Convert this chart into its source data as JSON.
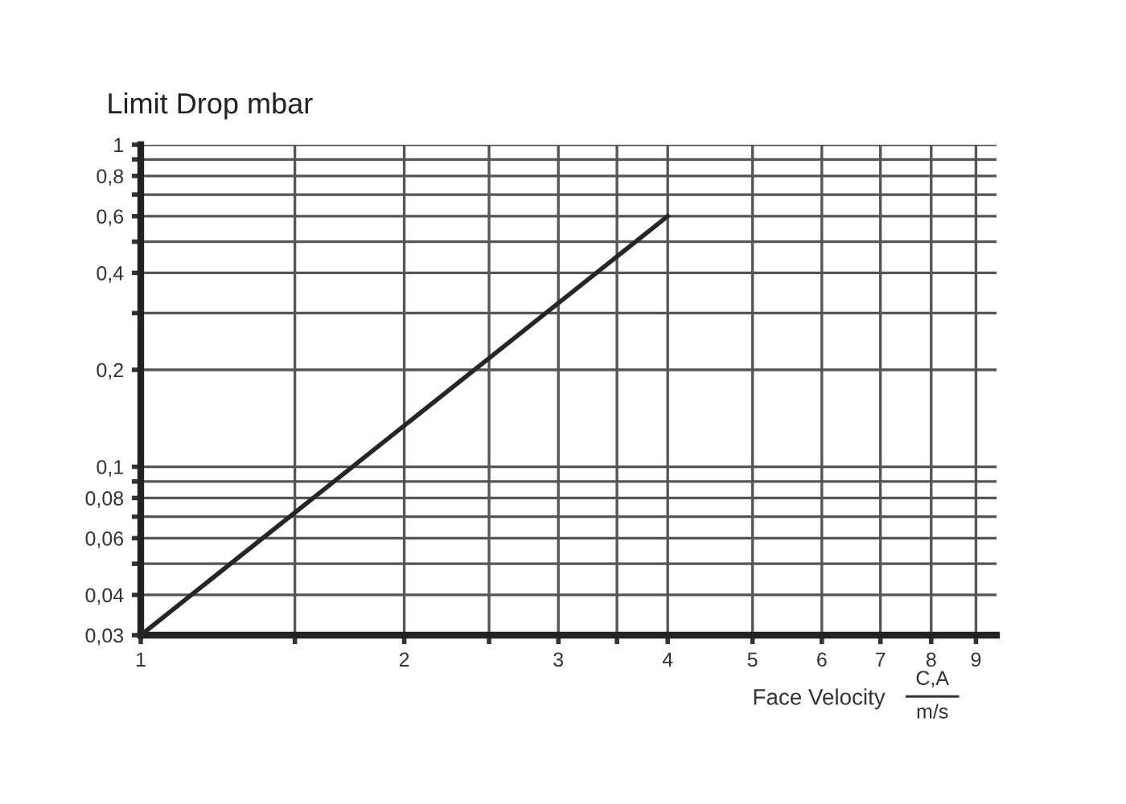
{
  "chart_data": {
    "type": "line",
    "title": "Limit Drop mbar",
    "xlabel": "Face Velocity",
    "annotations": [
      "C,A",
      "m/s"
    ],
    "x": [
      1,
      4
    ],
    "series": [
      {
        "color": "#262626",
        "values": [
          0.03,
          0.6
        ]
      }
    ],
    "log": "xy",
    "xlim": [
      1,
      9.5
    ],
    "ylim": [
      0.03,
      1
    ],
    "xticks": [
      1,
      {
        "value": 1.5,
        "label": null
      },
      2,
      {
        "value": 2.5,
        "label": null
      },
      3,
      {
        "value": 3.5,
        "label": null
      },
      4,
      5,
      6,
      7,
      8,
      9
    ],
    "yticks": [
      {
        "value": 0.03,
        "label": "0,03"
      },
      {
        "value": 0.04,
        "label": "0,04"
      },
      {
        "value": 0.05,
        "label": null
      },
      {
        "value": 0.06,
        "label": "0,06"
      },
      {
        "value": 0.07,
        "label": null
      },
      {
        "value": 0.08,
        "label": "0,08"
      },
      {
        "value": 0.09,
        "label": null
      },
      {
        "value": 0.1,
        "label": "0,1"
      },
      {
        "value": 0.2,
        "label": "0,2"
      },
      {
        "value": 0.3,
        "label": null
      },
      {
        "value": 0.4,
        "label": "0,4"
      },
      {
        "value": 0.5,
        "label": null
      },
      {
        "value": 0.6,
        "label": "0,6"
      },
      {
        "value": 0.7,
        "label": null
      },
      {
        "value": 0.8,
        "label": "0,8"
      },
      {
        "value": 0.9,
        "label": null
      },
      1
    ],
    "grid": true,
    "marker": "none",
    "line_style": "solid"
  }
}
